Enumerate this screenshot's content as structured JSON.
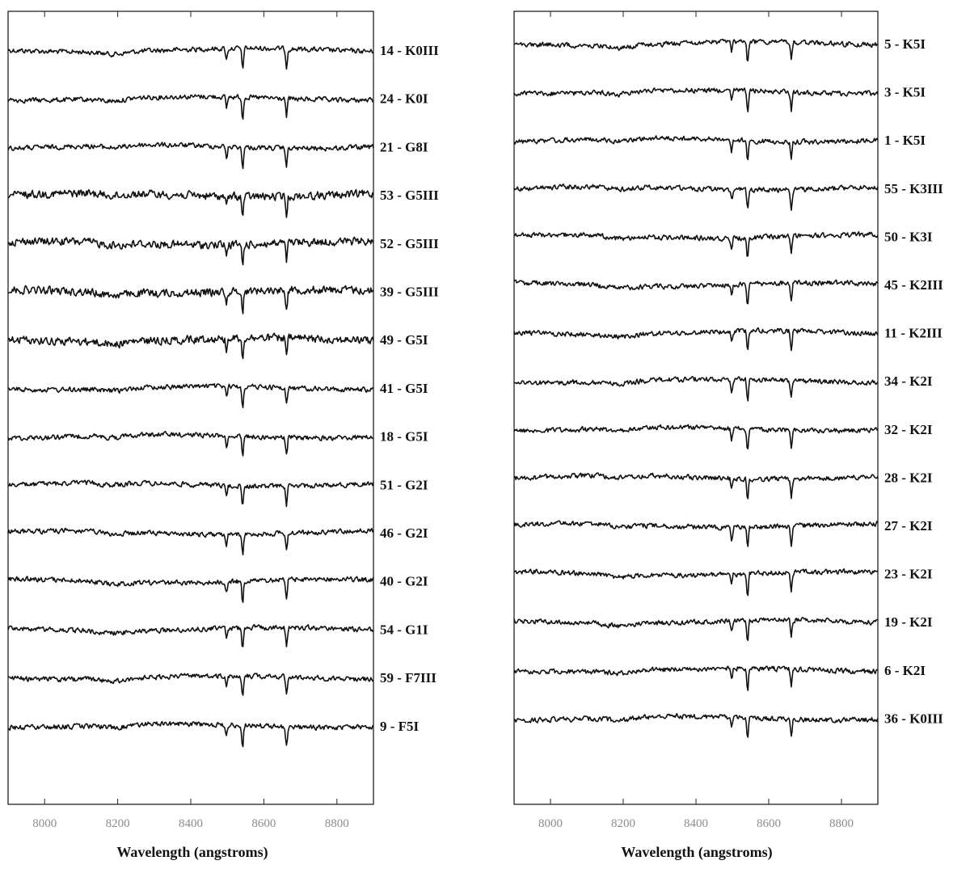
{
  "chart_data": [
    {
      "type": "line",
      "title": "",
      "xlabel": "Wavelength (angstroms)",
      "ylabel": "",
      "xlim": [
        7900,
        8900
      ],
      "xticks": [
        8000,
        8200,
        8400,
        8600,
        8800
      ],
      "grid": false,
      "legend": "none (each spectrum labeled at right)",
      "spectral_features": [
        8498,
        8542,
        8662
      ],
      "series": [
        {
          "name": "14 - K0III"
        },
        {
          "name": "24 - K0I"
        },
        {
          "name": "21 - G8I"
        },
        {
          "name": "53 - G5III"
        },
        {
          "name": "52 - G5III"
        },
        {
          "name": "39 - G5III"
        },
        {
          "name": "49 - G5I"
        },
        {
          "name": "41 - G5I"
        },
        {
          "name": "18 - G5I"
        },
        {
          "name": "51 - G2I"
        },
        {
          "name": "46 - G2I"
        },
        {
          "name": "40 - G2I"
        },
        {
          "name": "54 - G1I"
        },
        {
          "name": "59 - F7III"
        },
        {
          "name": "9 - F5I"
        }
      ]
    },
    {
      "type": "line",
      "title": "",
      "xlabel": "Wavelength (angstroms)",
      "ylabel": "",
      "xlim": [
        7900,
        8900
      ],
      "xticks": [
        8000,
        8200,
        8400,
        8600,
        8800
      ],
      "grid": false,
      "legend": "none (each spectrum labeled at right)",
      "spectral_features": [
        8498,
        8542,
        8662
      ],
      "series": [
        {
          "name": "5 - K5I"
        },
        {
          "name": "3 - K5I"
        },
        {
          "name": "1 - K5I"
        },
        {
          "name": "55 - K3III"
        },
        {
          "name": "50 - K3I"
        },
        {
          "name": "45 - K2III"
        },
        {
          "name": "11 - K2III"
        },
        {
          "name": "34 - K2I"
        },
        {
          "name": "32 - K2I"
        },
        {
          "name": "28 - K2I"
        },
        {
          "name": "27 - K2I"
        },
        {
          "name": "23 - K2I"
        },
        {
          "name": "19 - K2I"
        },
        {
          "name": "6 - K2I"
        },
        {
          "name": "36 - K0III"
        }
      ]
    }
  ]
}
